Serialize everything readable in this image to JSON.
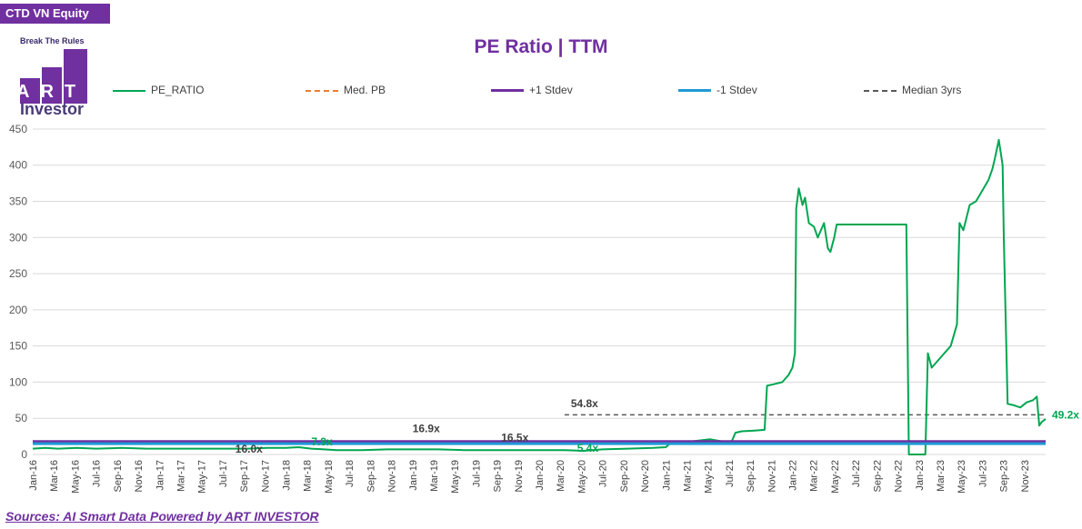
{
  "ticker": "CTD VN Equity",
  "logo": {
    "tagline": "Break The Rules",
    "brand": "ART",
    "sub": "Investor"
  },
  "source": "Sources: AI Smart Data Powered by ART INVESTOR",
  "colors": {
    "pe": "#00a651",
    "med_pb": "#ed7d31",
    "plus_stdev": "#7030a0",
    "minus_stdev": "#1f9ad6",
    "median3": "#595959",
    "accent": "#7030a0"
  },
  "chart_data": {
    "type": "line",
    "title": "PE Ratio  |  TTM",
    "ylim": [
      0,
      460
    ],
    "yticks": [
      0,
      50,
      100,
      150,
      200,
      250,
      300,
      350,
      400,
      450
    ],
    "grid": true,
    "legend": "top",
    "x_range": [
      2016.0,
      2024.0
    ],
    "xtick_labels": [
      "Jan-16",
      "Mar-16",
      "May-16",
      "Jul-16",
      "Sep-16",
      "Nov-16",
      "Jan-17",
      "Mar-17",
      "May-17",
      "Jul-17",
      "Sep-17",
      "Nov-17",
      "Jan-18",
      "Mar-18",
      "May-18",
      "Jul-18",
      "Sep-18",
      "Nov-18",
      "Jan-19",
      "Mar-19",
      "May-19",
      "Jul-19",
      "Sep-19",
      "Nov-19",
      "Jan-20",
      "Mar-20",
      "May-20",
      "Jul-20",
      "Sep-20",
      "Nov-20",
      "Jan-21",
      "Mar-21",
      "May-21",
      "Jul-21",
      "Sep-21",
      "Nov-21",
      "Jan-22",
      "Mar-22",
      "May-22",
      "Jul-22",
      "Sep-22",
      "Nov-22",
      "Jan-23",
      "Mar-23",
      "May-23",
      "Jul-23",
      "Sep-23",
      "Nov-23"
    ],
    "series": [
      {
        "name": "PE_RATIO",
        "key": "pe",
        "points": [
          [
            2016.0,
            8
          ],
          [
            2016.1,
            9
          ],
          [
            2016.2,
            8
          ],
          [
            2016.35,
            9
          ],
          [
            2016.5,
            8
          ],
          [
            2016.7,
            9
          ],
          [
            2016.9,
            8
          ],
          [
            2017.1,
            8
          ],
          [
            2017.3,
            8
          ],
          [
            2017.5,
            8
          ],
          [
            2017.7,
            8
          ],
          [
            2017.85,
            9
          ],
          [
            2018.0,
            9
          ],
          [
            2018.1,
            10
          ],
          [
            2018.2,
            8
          ],
          [
            2018.3,
            7
          ],
          [
            2018.4,
            6
          ],
          [
            2018.6,
            6
          ],
          [
            2018.8,
            7
          ],
          [
            2019.0,
            7
          ],
          [
            2019.2,
            7
          ],
          [
            2019.4,
            6
          ],
          [
            2019.6,
            6
          ],
          [
            2019.8,
            6
          ],
          [
            2020.0,
            6
          ],
          [
            2020.2,
            6
          ],
          [
            2020.35,
            5
          ],
          [
            2020.5,
            7
          ],
          [
            2020.7,
            8
          ],
          [
            2020.9,
            9
          ],
          [
            2021.0,
            10
          ],
          [
            2021.05,
            18
          ],
          [
            2021.15,
            17
          ],
          [
            2021.25,
            19
          ],
          [
            2021.35,
            21
          ],
          [
            2021.45,
            18
          ],
          [
            2021.52,
            18
          ],
          [
            2021.55,
            30
          ],
          [
            2021.6,
            32
          ],
          [
            2021.7,
            33
          ],
          [
            2021.78,
            34
          ],
          [
            2021.8,
            95
          ],
          [
            2021.85,
            97
          ],
          [
            2021.92,
            100
          ],
          [
            2021.97,
            110
          ],
          [
            2022.0,
            120
          ],
          [
            2022.02,
            140
          ],
          [
            2022.03,
            340
          ],
          [
            2022.05,
            368
          ],
          [
            2022.08,
            345
          ],
          [
            2022.1,
            355
          ],
          [
            2022.13,
            320
          ],
          [
            2022.17,
            315
          ],
          [
            2022.2,
            300
          ],
          [
            2022.25,
            320
          ],
          [
            2022.28,
            285
          ],
          [
            2022.3,
            280
          ],
          [
            2022.33,
            300
          ],
          [
            2022.35,
            318
          ],
          [
            2022.9,
            318
          ],
          [
            2022.92,
            0
          ],
          [
            2023.05,
            0
          ],
          [
            2023.07,
            140
          ],
          [
            2023.1,
            120
          ],
          [
            2023.15,
            130
          ],
          [
            2023.2,
            140
          ],
          [
            2023.25,
            150
          ],
          [
            2023.3,
            180
          ],
          [
            2023.32,
            320
          ],
          [
            2023.35,
            310
          ],
          [
            2023.4,
            345
          ],
          [
            2023.45,
            350
          ],
          [
            2023.5,
            365
          ],
          [
            2023.55,
            380
          ],
          [
            2023.58,
            395
          ],
          [
            2023.6,
            410
          ],
          [
            2023.63,
            435
          ],
          [
            2023.66,
            400
          ],
          [
            2023.67,
            300
          ],
          [
            2023.7,
            70
          ],
          [
            2023.75,
            68
          ],
          [
            2023.8,
            65
          ],
          [
            2023.85,
            72
          ],
          [
            2023.9,
            75
          ],
          [
            2023.93,
            80
          ],
          [
            2023.95,
            40
          ],
          [
            2023.97,
            45
          ],
          [
            2024.0,
            49
          ]
        ]
      },
      {
        "name": "Med. PB",
        "key": "med_pb",
        "points": []
      },
      {
        "name": "+1 Stdev",
        "key": "plus_stdev",
        "points": [
          [
            2016.0,
            18
          ],
          [
            2024.0,
            18
          ]
        ]
      },
      {
        "name": "-1 Stdev",
        "key": "minus_stdev",
        "points": [
          [
            2016.0,
            15
          ],
          [
            2024.0,
            15
          ]
        ]
      },
      {
        "name": "Median 3yrs",
        "key": "median3",
        "points": [
          [
            2020.2,
            54.8
          ],
          [
            2024.0,
            54.8
          ]
        ]
      }
    ],
    "annotations": [
      {
        "text": "16.0x",
        "x": 2017.6,
        "y": 0,
        "color": "#404040"
      },
      {
        "text": "7.9x",
        "x": 2018.2,
        "y": 10,
        "color": "#00a651"
      },
      {
        "text": "16.9x",
        "x": 2019.0,
        "y": 28,
        "color": "#404040"
      },
      {
        "text": "16.5x",
        "x": 2019.7,
        "y": 16,
        "color": "#404040"
      },
      {
        "text": "54.8x",
        "x": 2020.25,
        "y": 63,
        "color": "#404040"
      },
      {
        "text": "5.4x",
        "x": 2020.3,
        "y": 1,
        "color": "#00a651"
      },
      {
        "text": "49.2x",
        "x": 2024.05,
        "y": 47,
        "color": "#00a651"
      }
    ]
  }
}
